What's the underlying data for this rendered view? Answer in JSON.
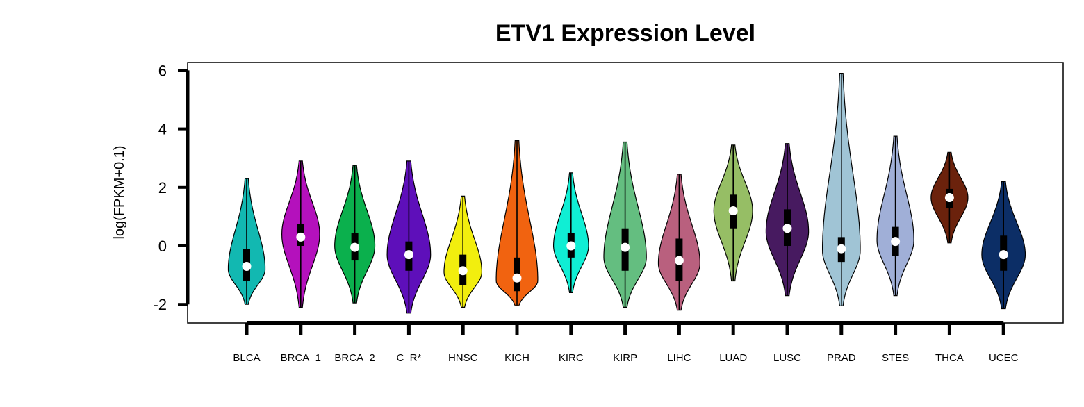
{
  "chart_data": {
    "type": "violin",
    "title": "ETV1 Expression Level",
    "xlabel": "",
    "ylabel": "log(FPKM+0.1)",
    "ylim": [
      -2.6,
      6.3
    ],
    "yticks": [
      -2,
      0,
      2,
      4,
      6
    ],
    "grid": false,
    "categories": [
      {
        "name": "BLCA",
        "color": "#12B8B1",
        "min": -2.0,
        "max": 2.3,
        "q1": -1.2,
        "median": -0.7,
        "q3": -0.1,
        "mode": -0.8,
        "spread": 0.78
      },
      {
        "name": "BRCA_1",
        "color": "#B411BC",
        "min": -2.1,
        "max": 2.9,
        "q1": 0.0,
        "median": 0.3,
        "q3": 0.75,
        "mode": 0.4,
        "spread": 0.8
      },
      {
        "name": "BRCA_2",
        "color": "#0BB04D",
        "min": -1.95,
        "max": 2.75,
        "q1": -0.5,
        "median": -0.05,
        "q3": 0.45,
        "mode": 0.0,
        "spread": 0.85
      },
      {
        "name": "C_R*",
        "color": "#5E0FBA",
        "min": -2.3,
        "max": 2.9,
        "q1": -0.85,
        "median": -0.3,
        "q3": 0.15,
        "mode": -0.3,
        "spread": 0.92
      },
      {
        "name": "HNSC",
        "color": "#F2EE0E",
        "min": -2.1,
        "max": 1.7,
        "q1": -1.35,
        "median": -0.85,
        "q3": -0.3,
        "mode": -0.9,
        "spread": 0.8
      },
      {
        "name": "KICH",
        "color": "#F16310",
        "min": -2.05,
        "max": 3.6,
        "q1": -1.55,
        "median": -1.1,
        "q3": -0.4,
        "mode": -1.2,
        "spread": 0.88
      },
      {
        "name": "KIRC",
        "color": "#10EED4",
        "min": -1.6,
        "max": 2.5,
        "q1": -0.4,
        "median": 0.0,
        "q3": 0.45,
        "mode": 0.0,
        "spread": 0.74
      },
      {
        "name": "KIRP",
        "color": "#64BE80",
        "min": -2.1,
        "max": 3.55,
        "q1": -0.85,
        "median": -0.05,
        "q3": 0.6,
        "mode": -0.4,
        "spread": 0.9
      },
      {
        "name": "LIHC",
        "color": "#B9607E",
        "min": -2.2,
        "max": 2.45,
        "q1": -1.2,
        "median": -0.5,
        "q3": 0.25,
        "mode": -0.6,
        "spread": 0.88
      },
      {
        "name": "LUAD",
        "color": "#96BE65",
        "min": -1.2,
        "max": 3.45,
        "q1": 0.6,
        "median": 1.2,
        "q3": 1.75,
        "mode": 1.2,
        "spread": 0.82
      },
      {
        "name": "LUSC",
        "color": "#471A60",
        "min": -1.7,
        "max": 3.5,
        "q1": 0.0,
        "median": 0.6,
        "q3": 1.25,
        "mode": 0.5,
        "spread": 0.9
      },
      {
        "name": "PRAD",
        "color": "#A0C4D5",
        "min": -2.05,
        "max": 5.9,
        "q1": -0.55,
        "median": -0.1,
        "q3": 0.3,
        "mode": -0.15,
        "spread": 0.8
      },
      {
        "name": "STES",
        "color": "#A0AFD7",
        "min": -1.7,
        "max": 3.75,
        "q1": -0.35,
        "median": 0.15,
        "q3": 0.65,
        "mode": 0.2,
        "spread": 0.78
      },
      {
        "name": "THCA",
        "color": "#6B220C",
        "min": 0.1,
        "max": 3.2,
        "q1": 1.3,
        "median": 1.65,
        "q3": 1.95,
        "mode": 1.65,
        "spread": 0.78
      },
      {
        "name": "UCEC",
        "color": "#0C2E66",
        "min": -2.15,
        "max": 2.2,
        "q1": -0.85,
        "median": -0.3,
        "q3": 0.35,
        "mode": -0.3,
        "spread": 0.92
      }
    ]
  }
}
